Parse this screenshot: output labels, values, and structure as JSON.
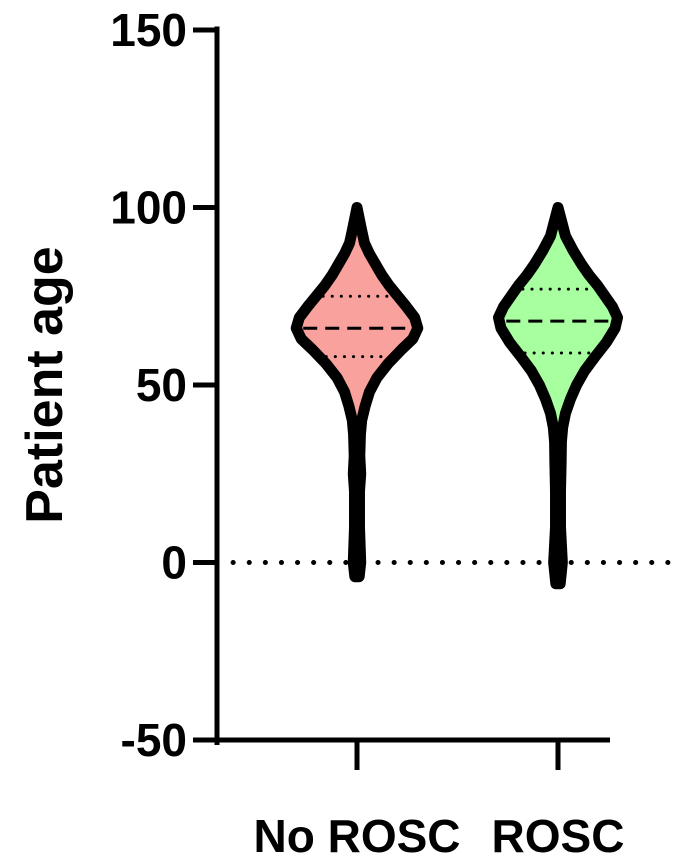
{
  "chart_data": {
    "type": "violin",
    "ylabel": "Patient age",
    "xlabel": "",
    "ylim": [
      -50,
      150
    ],
    "yticks": [
      -50,
      0,
      50,
      100,
      150
    ],
    "reference_line_y": 0,
    "categories": [
      "No ROSC",
      "ROSC"
    ],
    "series": [
      {
        "category": "No ROSC",
        "fill_color": "#f9a19c",
        "min": -4,
        "max": 100,
        "median": 66,
        "q1": 58,
        "q3": 75,
        "density": [
          [
            -4,
            0.035
          ],
          [
            0,
            0.06
          ],
          [
            10,
            0.04
          ],
          [
            20,
            0.04
          ],
          [
            25,
            0.06
          ],
          [
            30,
            0.045
          ],
          [
            36,
            0.055
          ],
          [
            40,
            0.075
          ],
          [
            44,
            0.13
          ],
          [
            48,
            0.2
          ],
          [
            52,
            0.32
          ],
          [
            56,
            0.5
          ],
          [
            60,
            0.72
          ],
          [
            63,
            0.9
          ],
          [
            66,
            0.98
          ],
          [
            69,
            0.93
          ],
          [
            72,
            0.8
          ],
          [
            75,
            0.66
          ],
          [
            78,
            0.52
          ],
          [
            81,
            0.4
          ],
          [
            84,
            0.3
          ],
          [
            87,
            0.2
          ],
          [
            90,
            0.12
          ],
          [
            94,
            0.07
          ],
          [
            100,
            0.0
          ]
        ]
      },
      {
        "category": "ROSC",
        "fill_color": "#a8ff9f",
        "min": -6,
        "max": 100,
        "median": 68,
        "q1": 59,
        "q3": 77,
        "density": [
          [
            -6,
            0.035
          ],
          [
            0,
            0.07
          ],
          [
            10,
            0.04
          ],
          [
            20,
            0.04
          ],
          [
            28,
            0.05
          ],
          [
            34,
            0.055
          ],
          [
            38,
            0.075
          ],
          [
            42,
            0.12
          ],
          [
            46,
            0.2
          ],
          [
            50,
            0.3
          ],
          [
            54,
            0.43
          ],
          [
            58,
            0.6
          ],
          [
            62,
            0.78
          ],
          [
            66,
            0.92
          ],
          [
            69,
            0.96
          ],
          [
            72,
            0.88
          ],
          [
            75,
            0.76
          ],
          [
            78,
            0.64
          ],
          [
            81,
            0.5
          ],
          [
            84,
            0.38
          ],
          [
            88,
            0.24
          ],
          [
            92,
            0.12
          ],
          [
            96,
            0.06
          ],
          [
            100,
            0.0
          ]
        ]
      }
    ]
  }
}
